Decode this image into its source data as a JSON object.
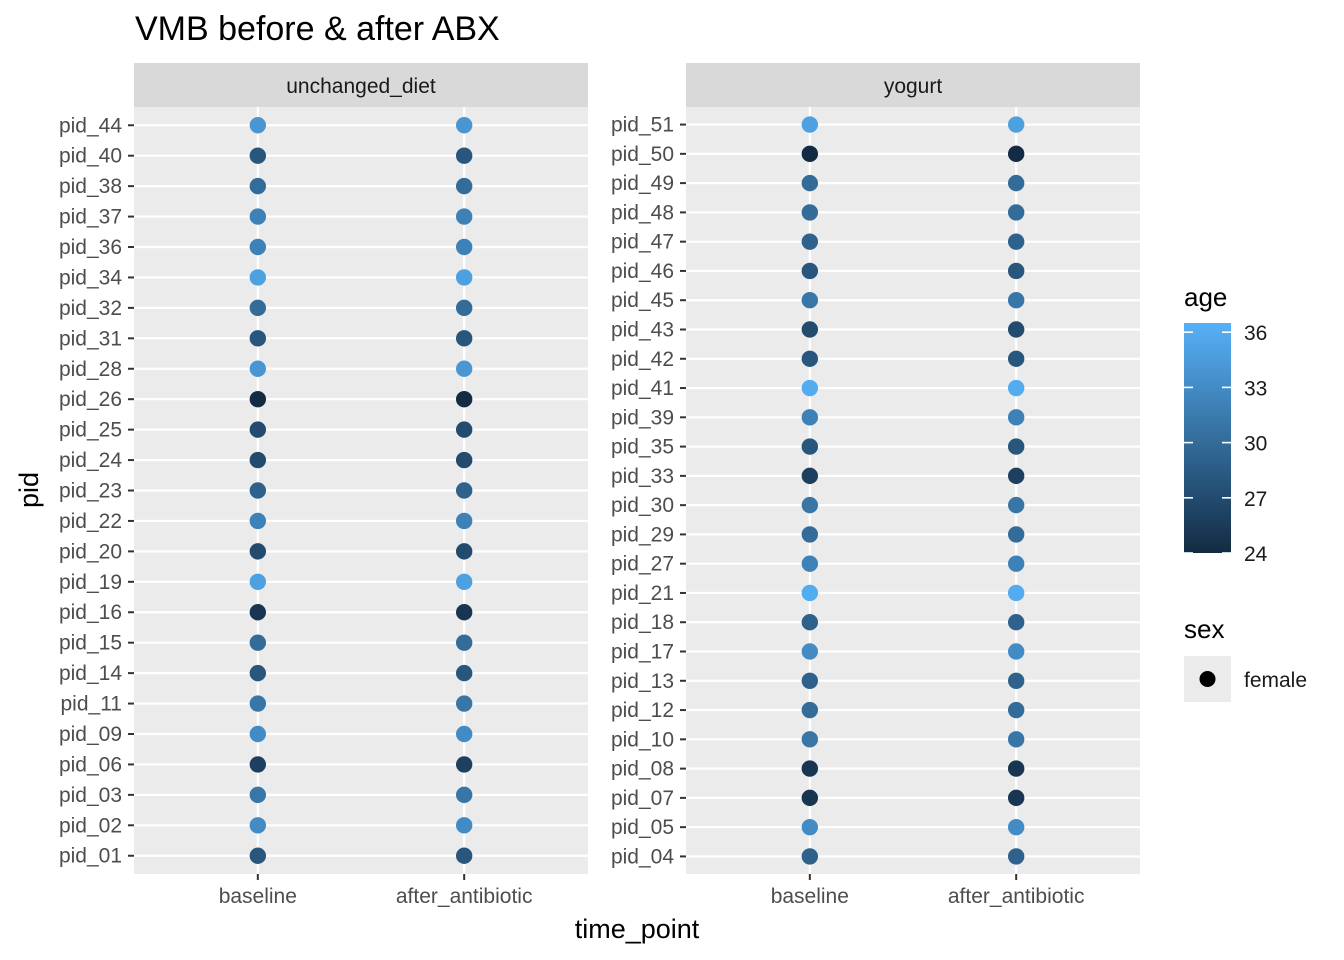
{
  "chart_data": {
    "type": "scatter",
    "title": "VMB before & after ABX",
    "xlabel": "time_point",
    "ylabel": "pid",
    "x_categories": [
      "baseline",
      "after_antibiotic"
    ],
    "panels": [
      {
        "name": "unchanged_diet",
        "pids": [
          "pid_44",
          "pid_40",
          "pid_38",
          "pid_37",
          "pid_36",
          "pid_34",
          "pid_32",
          "pid_31",
          "pid_28",
          "pid_26",
          "pid_25",
          "pid_24",
          "pid_23",
          "pid_22",
          "pid_20",
          "pid_19",
          "pid_16",
          "pid_15",
          "pid_14",
          "pid_11",
          "pid_09",
          "pid_06",
          "pid_03",
          "pid_02",
          "pid_01"
        ],
        "ages": [
          34,
          28,
          30,
          32,
          32,
          35,
          30,
          28,
          34,
          24,
          27,
          27,
          29,
          32,
          27,
          35,
          25,
          30,
          28,
          31,
          33,
          26,
          31,
          33,
          28
        ]
      },
      {
        "name": "yogurt",
        "pids": [
          "pid_51",
          "pid_50",
          "pid_49",
          "pid_48",
          "pid_47",
          "pid_46",
          "pid_45",
          "pid_43",
          "pid_42",
          "pid_41",
          "pid_39",
          "pid_35",
          "pid_33",
          "pid_30",
          "pid_29",
          "pid_27",
          "pid_21",
          "pid_18",
          "pid_17",
          "pid_13",
          "pid_12",
          "pid_10",
          "pid_08",
          "pid_07",
          "pid_05",
          "pid_04"
        ],
        "ages": [
          35,
          24,
          30,
          30,
          29,
          28,
          31,
          27,
          28,
          36,
          32,
          28,
          26,
          31,
          30,
          32,
          36,
          29,
          33,
          29,
          30,
          31,
          25,
          25,
          33,
          29
        ]
      }
    ],
    "color_scale": {
      "name": "age",
      "low": "#132B43",
      "high": "#56B1F7",
      "min": 24,
      "max": 36.5,
      "ticks": [
        24,
        27,
        30,
        33,
        36
      ]
    },
    "shape_legend": {
      "name": "sex",
      "entries": [
        "female"
      ]
    },
    "legend_placement": "right",
    "grid": true
  }
}
